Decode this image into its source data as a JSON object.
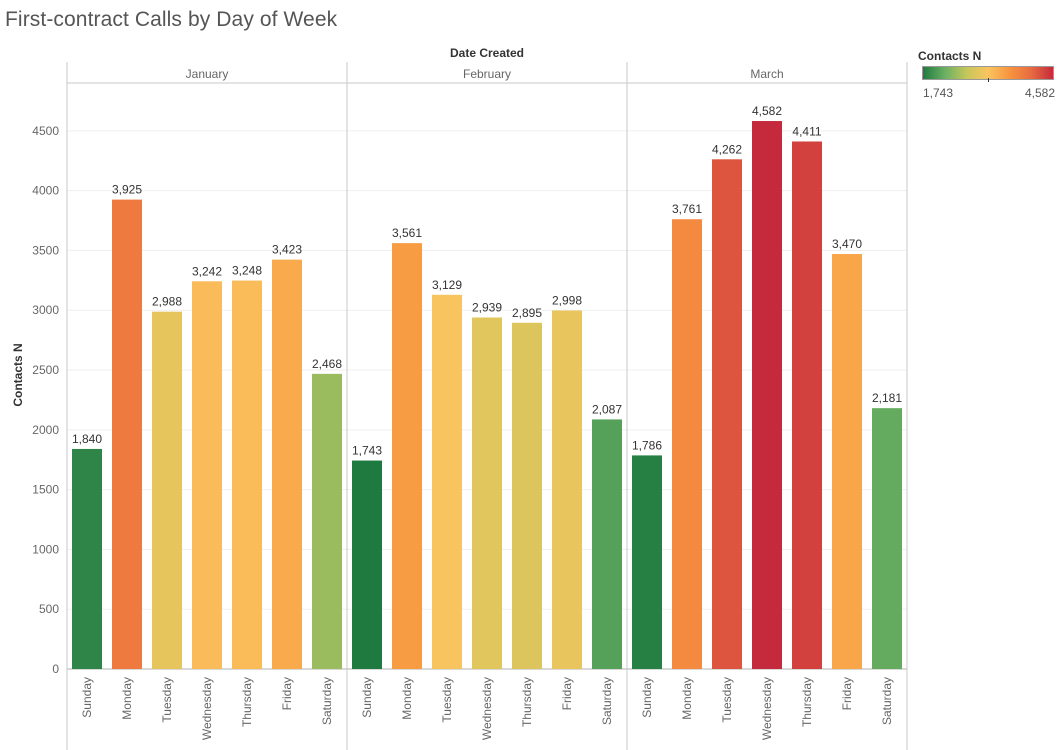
{
  "title": "First-contract Calls by Day of Week",
  "chart_data": {
    "type": "bar",
    "title": "First-contract Calls by Day of Week",
    "column_header": "Date Created",
    "ylabel": "Contacts N",
    "ylim": [
      0,
      4900
    ],
    "yticks": [
      0,
      500,
      1000,
      1500,
      2000,
      2500,
      3000,
      3500,
      4000,
      4500
    ],
    "grid": true,
    "days": [
      "Sunday",
      "Monday",
      "Tuesday",
      "Wednesday",
      "Thursday",
      "Friday",
      "Saturday"
    ],
    "panels": [
      {
        "name": "January",
        "values": [
          1840,
          3925,
          2988,
          3242,
          3248,
          3423,
          2468
        ],
        "labels": [
          "1,840",
          "3,925",
          "2,988",
          "3,242",
          "3,248",
          "3,423",
          "2,468"
        ]
      },
      {
        "name": "February",
        "values": [
          1743,
          3561,
          3129,
          2939,
          2895,
          2998,
          2087
        ],
        "labels": [
          "1,743",
          "3,561",
          "3,129",
          "2,939",
          "2,895",
          "2,998",
          "2,087"
        ]
      },
      {
        "name": "March",
        "values": [
          1786,
          3761,
          4262,
          4582,
          4411,
          3470,
          2181
        ],
        "labels": [
          "1,786",
          "3,761",
          "4,262",
          "4,582",
          "4,411",
          "3,470",
          "2,181"
        ]
      }
    ],
    "color_scale": {
      "title": "Contacts N",
      "min": 1743,
      "max": 4582,
      "min_label": "1,743",
      "max_label": "4,582",
      "colors": [
        "#1f7a40",
        "#6aaf62",
        "#c5c65a",
        "#fbc45f",
        "#f8943f",
        "#e86a41",
        "#c52a3c"
      ]
    }
  }
}
